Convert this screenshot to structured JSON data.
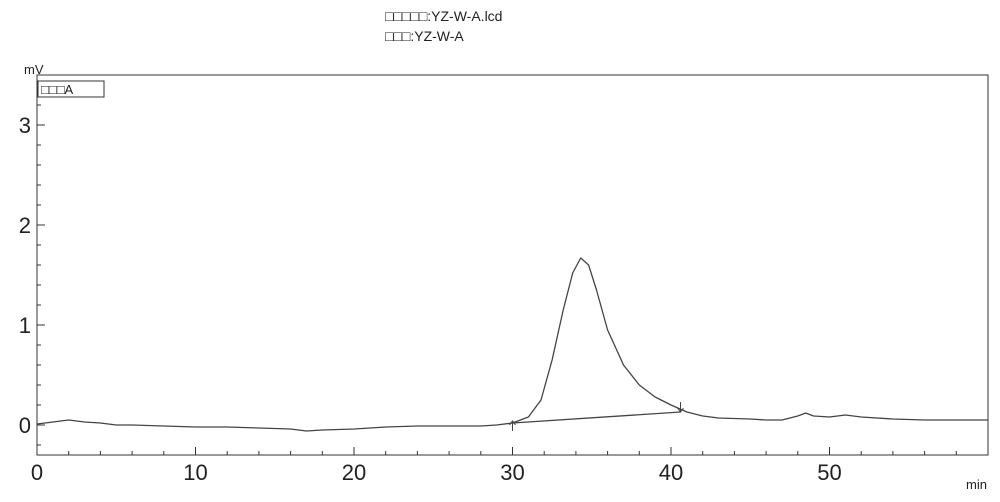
{
  "header": {
    "file_line": "□□□□□:YZ-W-A.lcd",
    "sample_line": "□□□:YZ-W-A"
  },
  "chart_data": {
    "type": "line",
    "title": "",
    "xlabel": "min",
    "ylabel": "mV",
    "xlim": [
      0,
      60
    ],
    "ylim": [
      -0.3,
      3.5
    ],
    "x_ticks": [
      0,
      10,
      20,
      30,
      40,
      50
    ],
    "y_ticks": [
      0,
      1,
      2,
      3
    ],
    "legend": {
      "label": "□□□A",
      "position": "top-left"
    },
    "series": [
      {
        "name": "□□□A",
        "color": "#444444",
        "points": [
          [
            0,
            0.01
          ],
          [
            1,
            0.03
          ],
          [
            2,
            0.05
          ],
          [
            3,
            0.03
          ],
          [
            4,
            0.02
          ],
          [
            5,
            0.0
          ],
          [
            6,
            0.0
          ],
          [
            8,
            -0.01
          ],
          [
            10,
            -0.02
          ],
          [
            12,
            -0.02
          ],
          [
            14,
            -0.03
          ],
          [
            16,
            -0.04
          ],
          [
            17,
            -0.06
          ],
          [
            18,
            -0.05
          ],
          [
            20,
            -0.04
          ],
          [
            22,
            -0.02
          ],
          [
            24,
            -0.01
          ],
          [
            26,
            -0.01
          ],
          [
            28,
            -0.01
          ],
          [
            29,
            0.0
          ],
          [
            30,
            0.02
          ],
          [
            31,
            0.08
          ],
          [
            31.8,
            0.25
          ],
          [
            32.5,
            0.65
          ],
          [
            33.2,
            1.15
          ],
          [
            33.8,
            1.52
          ],
          [
            34.3,
            1.67
          ],
          [
            34.8,
            1.6
          ],
          [
            35.3,
            1.35
          ],
          [
            36,
            0.95
          ],
          [
            37,
            0.6
          ],
          [
            38,
            0.4
          ],
          [
            39,
            0.28
          ],
          [
            40,
            0.2
          ],
          [
            41,
            0.13
          ],
          [
            42,
            0.09
          ],
          [
            43,
            0.07
          ],
          [
            45,
            0.06
          ],
          [
            46,
            0.05
          ],
          [
            47,
            0.05
          ],
          [
            48,
            0.09
          ],
          [
            48.5,
            0.12
          ],
          [
            49,
            0.09
          ],
          [
            50,
            0.08
          ],
          [
            51,
            0.1
          ],
          [
            52,
            0.08
          ],
          [
            54,
            0.06
          ],
          [
            56,
            0.05
          ],
          [
            58,
            0.05
          ],
          [
            60,
            0.05
          ]
        ]
      },
      {
        "name": "",
        "color": "#444444",
        "points": [
          [
            30,
            0.02
          ],
          [
            40.6,
            0.13
          ]
        ]
      }
    ],
    "markers": [
      {
        "x": 30.0,
        "y": 0.02,
        "direction": "up"
      },
      {
        "x": 40.6,
        "y": 0.15,
        "direction": "down"
      }
    ]
  }
}
